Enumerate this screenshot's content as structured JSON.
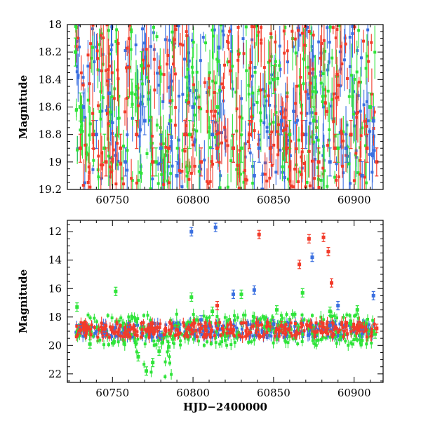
{
  "chart_data": [
    {
      "panel": "top",
      "type": "scatter",
      "ylabel": "Magnitude",
      "xlabel": "",
      "xlim": [
        60722,
        60918
      ],
      "ylim": [
        19.2,
        18.0
      ],
      "y_inverted": true,
      "xticks": [
        60750,
        60800,
        60850,
        60900
      ],
      "xtick_labels": [
        "60750",
        "60800",
        "60850",
        "60900"
      ],
      "yticks": [
        18,
        18.2,
        18.4,
        18.6,
        18.8,
        19,
        19.2
      ],
      "ytick_labels": [
        "18",
        "18.2",
        "18.4",
        "18.6",
        "18.8",
        "19",
        "19.2"
      ],
      "grid": false,
      "legend": "none",
      "series": [
        {
          "color": "#3a6fe0",
          "x": [
            60732,
            60740,
            60748,
            60758,
            60770,
            60780,
            60790,
            60800,
            60812,
            60825,
            60838,
            60841,
            60843,
            60855,
            60870,
            60885,
            60895,
            60905,
            60912
          ],
          "y": [
            18.6,
            18.8,
            18.5,
            19.0,
            18.7,
            18.9,
            19.1,
            18.6,
            18.8,
            18.9,
            19.1,
            18.9,
            19.2,
            18.7,
            18.8,
            19.0,
            18.9,
            19.1,
            18.7
          ]
        },
        {
          "color": "#2fe43a",
          "x": [
            60727,
            60730,
            60745,
            60762,
            60768,
            60777,
            60786,
            60798,
            60815,
            60830,
            60850,
            60860,
            60875,
            60890,
            60910
          ],
          "y": [
            18.2,
            18.6,
            18.9,
            18.5,
            18.3,
            19.0,
            18.7,
            18.8,
            18.6,
            18.9,
            18.4,
            18.8,
            18.7,
            18.9,
            18.6
          ]
        },
        {
          "color": "#f23b2a",
          "x": [
            60730,
            60738,
            60746,
            60755,
            60765,
            60775,
            60785,
            60795,
            60805,
            60815,
            60825,
            60835,
            60848,
            60858,
            60868,
            60878,
            60888,
            60898,
            60908,
            60914
          ],
          "y": [
            18.9,
            18.8,
            19.0,
            18.9,
            18.8,
            19.0,
            18.9,
            18.8,
            19.0,
            18.9,
            18.9,
            18.8,
            18.9,
            18.9,
            18.8,
            19.0,
            18.9,
            18.8,
            18.9,
            19.0
          ]
        }
      ]
    },
    {
      "panel": "bottom",
      "type": "scatter",
      "ylabel": "Magnitude",
      "xlabel": "HJD−2400000",
      "xlim": [
        60722,
        60918
      ],
      "ylim": [
        22.6,
        11.2
      ],
      "y_inverted": true,
      "xticks": [
        60750,
        60800,
        60850,
        60900
      ],
      "xtick_labels": [
        "60750",
        "60800",
        "60850",
        "60900"
      ],
      "yticks": [
        12,
        14,
        16,
        18,
        20,
        22
      ],
      "ytick_labels": [
        "12",
        "14",
        "16",
        "18",
        "20",
        "22"
      ],
      "grid": false,
      "legend": "none",
      "series": [
        {
          "color": "#3a6fe0",
          "x": [
            60730,
            60745,
            60760,
            60780,
            60799,
            60805,
            60814,
            60825,
            60838,
            60850,
            60874,
            60885,
            60890,
            60905,
            60912
          ],
          "y": [
            18.8,
            19.1,
            18.7,
            19.3,
            12.0,
            18.2,
            11.7,
            16.4,
            16.1,
            18.5,
            13.8,
            18.6,
            17.2,
            18.9,
            16.5
          ]
        },
        {
          "color": "#2fe43a",
          "x": [
            60728,
            60736,
            60752,
            60766,
            60771,
            60775,
            60779,
            60785,
            60799,
            60812,
            60830,
            60852,
            60868,
            60885,
            60902,
            60913
          ],
          "y": [
            17.3,
            19.9,
            16.2,
            20.8,
            21.8,
            21.2,
            20.4,
            20.1,
            16.6,
            17.6,
            16.4,
            17.5,
            16.3,
            17.6,
            17.5,
            19.2
          ]
        },
        {
          "color": "#f23b2a",
          "x": [
            60730,
            60745,
            60760,
            60775,
            60790,
            60805,
            60815,
            60825,
            60841,
            60855,
            60866,
            60872,
            60881,
            60884,
            60886,
            60895,
            60905,
            60914
          ],
          "y": [
            18.9,
            18.8,
            18.9,
            18.8,
            18.9,
            18.8,
            17.2,
            18.9,
            12.2,
            18.6,
            14.3,
            12.5,
            12.4,
            13.4,
            15.6,
            18.6,
            18.7,
            18.8
          ]
        }
      ]
    }
  ]
}
